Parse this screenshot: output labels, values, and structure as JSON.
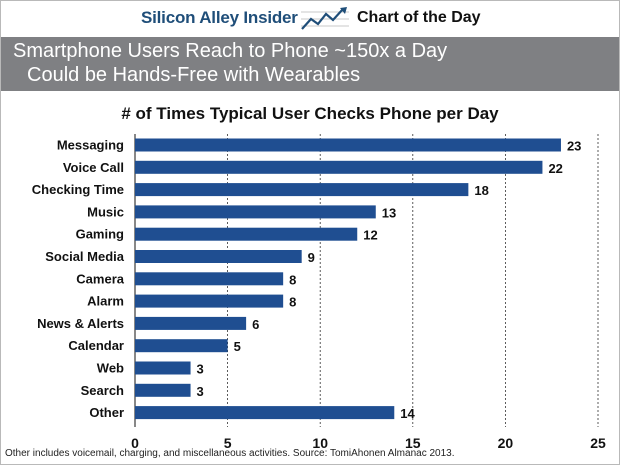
{
  "brand": {
    "left": "Silicon Alley Insider",
    "right": "Chart of the Day",
    "logo_icon": "rising-line-chart-icon"
  },
  "banner": {
    "line1": "Smartphone Users Reach to Phone ~150x a Day",
    "line2": "Could be Hands-Free with Wearables"
  },
  "footnote": "Other includes voicemail, charging, and miscellaneous activities. Source: TomiAhonen Almanac 2013.",
  "colors": {
    "bar": "#1f4e91",
    "banner": "#7f8083",
    "grid": "#333333"
  },
  "chart_data": {
    "type": "bar",
    "orientation": "horizontal",
    "title": "# of Times Typical User Checks Phone per Day",
    "categories": [
      "Messaging",
      "Voice Call",
      "Checking Time",
      "Music",
      "Gaming",
      "Social Media",
      "Camera",
      "Alarm",
      "News & Alerts",
      "Calendar",
      "Web",
      "Search",
      "Other"
    ],
    "values": [
      23,
      22,
      18,
      13,
      12,
      9,
      8,
      8,
      6,
      5,
      3,
      3,
      14
    ],
    "xlim": [
      0,
      25
    ],
    "xticks": [
      "0",
      "5",
      "10",
      "15",
      "20",
      "25"
    ],
    "grid": "vertical dashed",
    "data_labels": true
  }
}
